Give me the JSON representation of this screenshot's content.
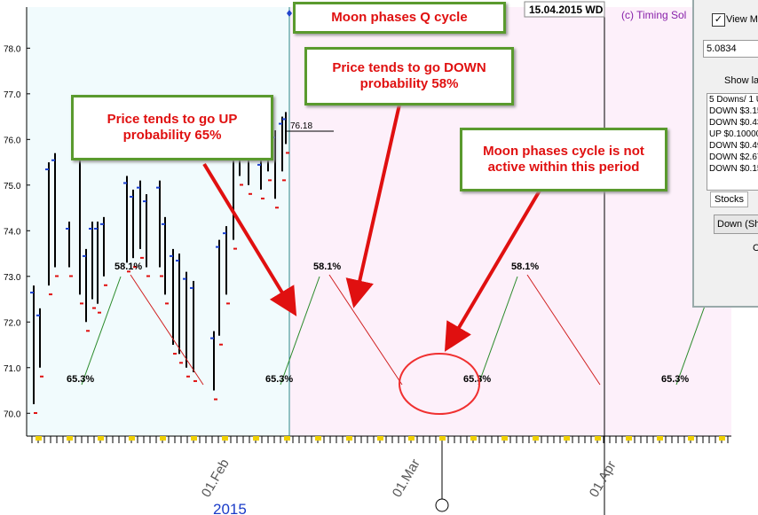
{
  "header": {
    "date": "15.04.2015 WD",
    "copyright": "(c) Timing Sol"
  },
  "chart": {
    "yticks": [
      {
        "value": 70,
        "label": "70.0"
      },
      {
        "value": 71,
        "label": "71.0"
      },
      {
        "value": 72,
        "label": "72.0"
      },
      {
        "value": 73,
        "label": "73.0"
      },
      {
        "value": 74,
        "label": "74.0"
      },
      {
        "value": 75,
        "label": "75.0"
      },
      {
        "value": 76,
        "label": "76.0"
      },
      {
        "value": 77,
        "label": "77.0"
      },
      {
        "value": 78,
        "label": "78.0"
      }
    ],
    "ylim": [
      69.5,
      78.9
    ],
    "xlabels": [
      "01.Feb",
      "01.Mar",
      "01.Apr"
    ],
    "year": "2015",
    "bars": [
      [
        72.8,
        70.2
      ],
      [
        72.3,
        71.0
      ],
      [
        75.5,
        72.8
      ],
      [
        75.7,
        73.2
      ],
      [
        74.2,
        73.2
      ],
      [
        75.8,
        72.6
      ],
      [
        73.6,
        72.0
      ],
      [
        74.2,
        72.5
      ],
      [
        74.2,
        72.4
      ],
      [
        74.3,
        73.0
      ],
      [
        75.2,
        73.3
      ],
      [
        74.9,
        73.4
      ],
      [
        75.1,
        73.6
      ],
      [
        74.8,
        73.2
      ],
      [
        75.1,
        73.2
      ],
      [
        74.3,
        72.6
      ],
      [
        73.6,
        71.5
      ],
      [
        73.5,
        71.3
      ],
      [
        73.1,
        71.0
      ],
      [
        72.9,
        70.9
      ],
      [
        71.8,
        70.5
      ],
      [
        73.8,
        71.7
      ],
      [
        74.1,
        72.6
      ],
      [
        75.8,
        73.8
      ],
      [
        76.8,
        75.2
      ],
      [
        76.2,
        75.0
      ],
      [
        75.6,
        74.9
      ],
      [
        75.9,
        75.3
      ],
      [
        76.2,
        74.7
      ],
      [
        76.5,
        75.3
      ],
      [
        76.6,
        75.9
      ]
    ],
    "last_price": {
      "value": 76.18,
      "label": "76.18"
    },
    "up_label": "58.1%",
    "base_label": "65.3%"
  },
  "callouts": [
    "Moon phases Q cycle",
    "Price tends to go DOWN probability 58%",
    "Price tends to go UP probability 65%",
    "Moon phases cycle is not active within this period"
  ],
  "panel": {
    "checkbox": "View Mo",
    "input": "5.0834",
    "show": "Show la",
    "list": [
      "5 Downs/ 1 U",
      "DOWN $3.15",
      "DOWN $0.43",
      "UP $0.10000",
      "DOWN $0.49",
      "DOWN $2.67",
      "DOWN $0.15"
    ],
    "tab": "Stocks",
    "dropdown": "Down (Sho",
    "button": "C"
  }
}
